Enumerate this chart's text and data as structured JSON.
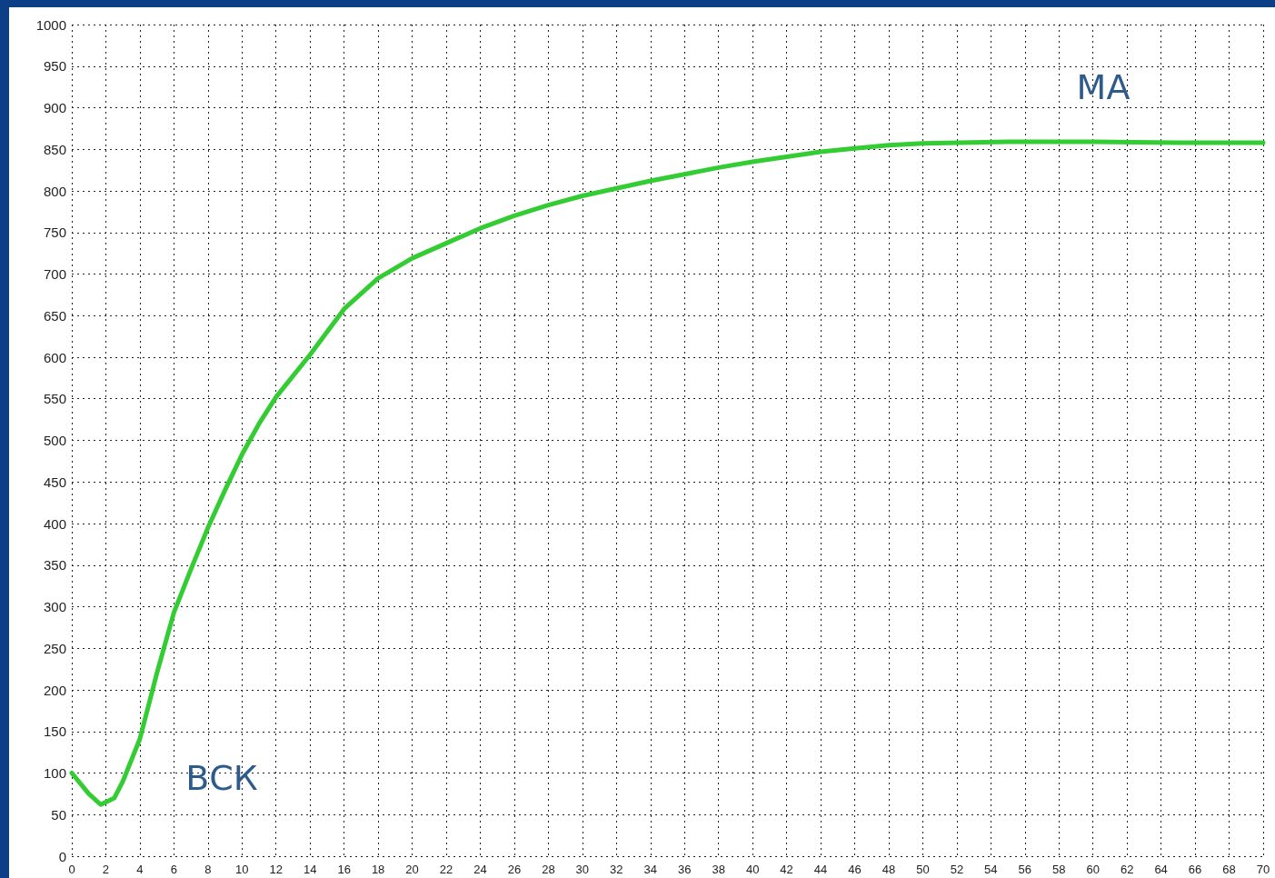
{
  "chart_data": {
    "type": "line",
    "x": [
      0,
      1,
      1.7,
      2.5,
      3,
      4,
      5,
      6,
      7,
      8,
      9,
      10,
      11,
      12,
      14,
      16,
      18,
      20,
      22,
      24,
      26,
      28,
      30,
      32,
      34,
      36,
      38,
      40,
      42,
      44,
      46,
      48,
      50,
      55,
      60,
      65,
      70
    ],
    "series": [
      {
        "color": "#33cc33",
        "values": [
          100,
          75,
          62,
          70,
          90,
          141,
          220,
          293,
          345,
          395,
          440,
          483,
          520,
          552,
          603,
          658,
          695,
          719,
          737,
          755,
          770,
          783,
          794,
          803,
          812,
          820,
          828,
          835,
          841,
          847,
          851,
          855,
          857,
          859,
          859,
          858,
          858
        ]
      }
    ],
    "xlim": [
      0,
      70
    ],
    "xticks": [
      0,
      2,
      4,
      6,
      8,
      10,
      12,
      14,
      16,
      18,
      20,
      22,
      24,
      26,
      28,
      30,
      32,
      34,
      36,
      38,
      40,
      42,
      44,
      46,
      48,
      50,
      52,
      54,
      56,
      58,
      60,
      62,
      64,
      66,
      68,
      70
    ],
    "ylim": [
      0,
      1000
    ],
    "yticks": [
      0,
      50,
      100,
      150,
      200,
      250,
      300,
      350,
      400,
      450,
      500,
      550,
      600,
      650,
      700,
      750,
      800,
      850,
      900,
      950,
      1000
    ],
    "grid": true,
    "marker": "none",
    "line_style": "solid",
    "annotations": [
      "ВСК",
      "МА"
    ]
  }
}
